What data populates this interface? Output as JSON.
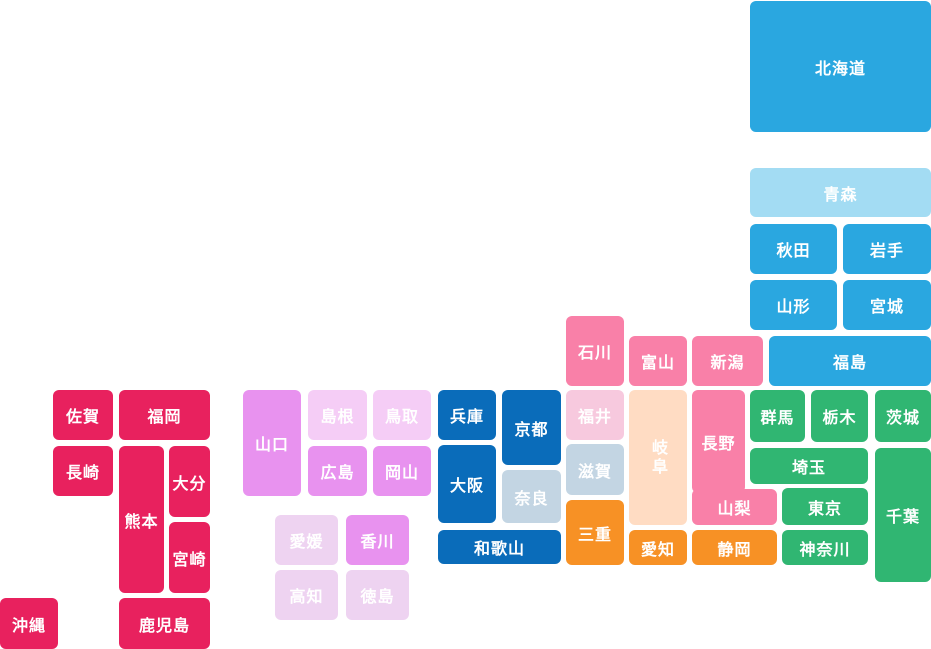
{
  "regions": [
    {
      "id": "hokkaido",
      "color": "#2aa7e0"
    },
    {
      "id": "tohoku-aomori",
      "color": "#a3dcf3"
    },
    {
      "id": "tohoku",
      "color": "#2aa7e0"
    },
    {
      "id": "kanto",
      "color": "#30b672"
    },
    {
      "id": "chubu-hokuriku",
      "color": "#f980a8"
    },
    {
      "id": "chubu-light",
      "color": "#ffdcc3"
    },
    {
      "id": "chubu-tokai",
      "color": "#f79125"
    },
    {
      "id": "kinki-blue",
      "color": "#0a6cba"
    },
    {
      "id": "kinki-gray",
      "color": "#c3d5e3"
    },
    {
      "id": "kinki-pink",
      "color": "#f7c9de"
    },
    {
      "id": "chugoku-dark",
      "color": "#e892ef"
    },
    {
      "id": "chugoku-light",
      "color": "#f5cdf6"
    },
    {
      "id": "shikoku-dark",
      "color": "#e892ef"
    },
    {
      "id": "shikoku-light",
      "color": "#eed3f1"
    },
    {
      "id": "kyushu",
      "color": "#e8215e"
    }
  ],
  "prefectures": [
    {
      "name": "北海道",
      "color": "#2aa7e0"
    },
    {
      "name": "青森",
      "color": "#a3dcf3"
    },
    {
      "name": "秋田",
      "color": "#2aa7e0"
    },
    {
      "name": "岩手",
      "color": "#2aa7e0"
    },
    {
      "name": "山形",
      "color": "#2aa7e0"
    },
    {
      "name": "宮城",
      "color": "#2aa7e0"
    },
    {
      "name": "福島",
      "color": "#2aa7e0"
    },
    {
      "name": "新潟",
      "color": "#f980a8"
    },
    {
      "name": "富山",
      "color": "#f980a8"
    },
    {
      "name": "石川",
      "color": "#f980a8"
    },
    {
      "name": "福井",
      "color": "#f7c9de"
    },
    {
      "name": "長野",
      "color": "#f980a8"
    },
    {
      "name": "岐阜",
      "color": "#ffdcc3"
    },
    {
      "name": "山梨",
      "color": "#f980a8"
    },
    {
      "name": "愛知",
      "color": "#f79125"
    },
    {
      "name": "静岡",
      "color": "#f79125"
    },
    {
      "name": "三重",
      "color": "#f79125"
    },
    {
      "name": "群馬",
      "color": "#30b672"
    },
    {
      "name": "栃木",
      "color": "#30b672"
    },
    {
      "name": "茨城",
      "color": "#30b672"
    },
    {
      "name": "埼玉",
      "color": "#30b672"
    },
    {
      "name": "千葉",
      "color": "#30b672"
    },
    {
      "name": "東京",
      "color": "#30b672"
    },
    {
      "name": "神奈川",
      "color": "#30b672"
    },
    {
      "name": "兵庫",
      "color": "#0a6cba"
    },
    {
      "name": "京都",
      "color": "#0a6cba"
    },
    {
      "name": "大阪",
      "color": "#0a6cba"
    },
    {
      "name": "奈良",
      "color": "#c3d5e3"
    },
    {
      "name": "滋賀",
      "color": "#c3d5e3"
    },
    {
      "name": "和歌山",
      "color": "#0a6cba"
    },
    {
      "name": "山口",
      "color": "#e892ef"
    },
    {
      "name": "島根",
      "color": "#f5cdf6"
    },
    {
      "name": "鳥取",
      "color": "#f5cdf6"
    },
    {
      "name": "広島",
      "color": "#e892ef"
    },
    {
      "name": "岡山",
      "color": "#e892ef"
    },
    {
      "name": "愛媛",
      "color": "#eed3f1"
    },
    {
      "name": "香川",
      "color": "#e892ef"
    },
    {
      "name": "高知",
      "color": "#eed3f1"
    },
    {
      "name": "徳島",
      "color": "#eed3f1"
    },
    {
      "name": "佐賀",
      "color": "#e8215e"
    },
    {
      "name": "福岡",
      "color": "#e8215e"
    },
    {
      "name": "長崎",
      "color": "#e8215e"
    },
    {
      "name": "熊本",
      "color": "#e8215e"
    },
    {
      "name": "大分",
      "color": "#e8215e"
    },
    {
      "name": "宮崎",
      "color": "#e8215e"
    },
    {
      "name": "鹿児島",
      "color": "#e8215e"
    },
    {
      "name": "沖縄",
      "color": "#e8215e"
    }
  ]
}
